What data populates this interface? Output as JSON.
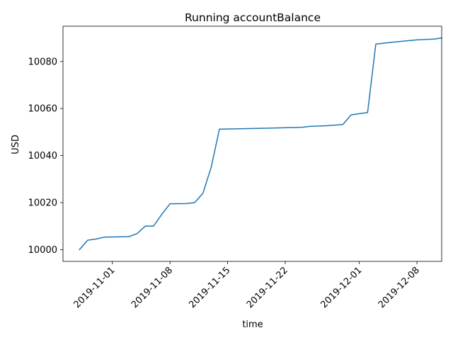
{
  "chart_data": {
    "type": "line",
    "title": "Running accountBalance",
    "xlabel": "time",
    "ylabel": "USD",
    "x_type": "date",
    "xlim": [
      "2019-10-26",
      "2019-12-11"
    ],
    "ylim": [
      9995,
      10095
    ],
    "grid": false,
    "legend": "none",
    "x_ticks": [
      "2019-11-01",
      "2019-11-08",
      "2019-11-15",
      "2019-11-22",
      "2019-12-01",
      "2019-12-08"
    ],
    "y_ticks": [
      10000,
      10020,
      10040,
      10060,
      10080
    ],
    "series": [
      {
        "color": "#1f77b4",
        "points": [
          [
            "2019-10-28",
            10000
          ],
          [
            "2019-10-29",
            10004
          ],
          [
            "2019-10-30",
            10004.5
          ],
          [
            "2019-10-31",
            10005.3
          ],
          [
            "2019-11-03",
            10005.5
          ],
          [
            "2019-11-04",
            10006.8
          ],
          [
            "2019-11-05",
            10010
          ],
          [
            "2019-11-06",
            10010
          ],
          [
            "2019-11-07",
            10015
          ],
          [
            "2019-11-08",
            10019.5
          ],
          [
            "2019-11-10",
            10019.6
          ],
          [
            "2019-11-11",
            10020
          ],
          [
            "2019-11-12",
            10024
          ],
          [
            "2019-11-13",
            10035
          ],
          [
            "2019-11-14",
            10051.2
          ],
          [
            "2019-11-18",
            10051.5
          ],
          [
            "2019-11-24",
            10052
          ],
          [
            "2019-11-25",
            10052.4
          ],
          [
            "2019-11-27",
            10052.7
          ],
          [
            "2019-11-29",
            10053.2
          ],
          [
            "2019-11-30",
            10057.3
          ],
          [
            "2019-12-01",
            10057.8
          ],
          [
            "2019-12-02",
            10058.3
          ],
          [
            "2019-12-03",
            10087.4
          ],
          [
            "2019-12-05",
            10088.2
          ],
          [
            "2019-12-08",
            10089.2
          ],
          [
            "2019-12-10",
            10089.5
          ],
          [
            "2019-12-11",
            10090
          ]
        ]
      }
    ]
  }
}
